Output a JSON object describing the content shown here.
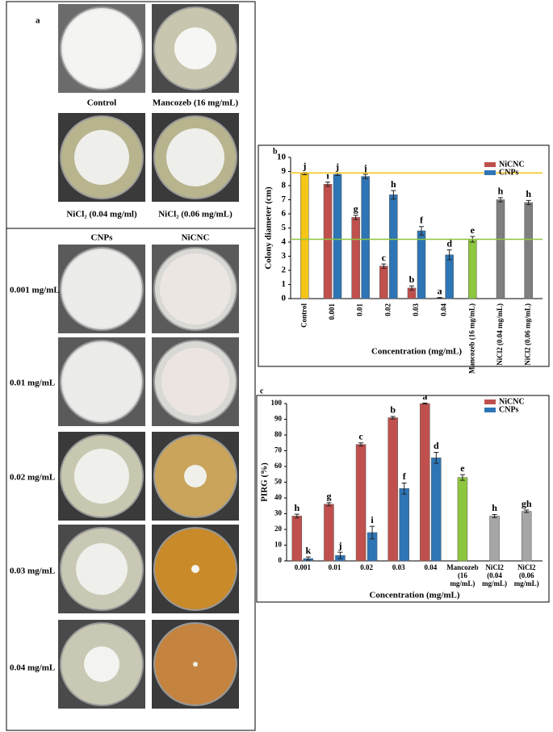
{
  "panel_a": {
    "label": "a",
    "top_captions": [
      "Control",
      "Mancozeb (16 mg/mL)",
      "NiCl₂ (0.04 mg/ml)",
      "NiCl₂ (0.06 mg/mL)"
    ],
    "column_headers": [
      "CNPs",
      "NiCNC"
    ],
    "row_labels": [
      "0.001 mg/mL",
      "0.01 mg/mL",
      "0.02 mg/mL",
      "0.03 mg/mL",
      "0.04 mg/mL"
    ]
  },
  "chart_data": [
    {
      "type": "bar",
      "panel_label": "b",
      "x_label": "Concentration (mg/mL)",
      "y_label": "Colony diameter (cm)",
      "categories": [
        "Control",
        "0.001",
        "0.01",
        "0.02",
        "0.03",
        "0.04",
        "Mancozeb (16 mg/mL)",
        "NiCl2 (0.04 mg/mL)",
        "NiCl2 (0.06 mg/mL)"
      ],
      "series": [
        {
          "name": "NiCNC",
          "color": "#c0504d",
          "values": [
            null,
            8.1,
            5.75,
            2.3,
            0.75,
            0.05,
            null,
            null,
            null
          ],
          "errors": [
            null,
            0.15,
            0.15,
            0.15,
            0.15,
            0.03,
            null,
            null,
            null
          ],
          "letters": [
            null,
            "i",
            "g",
            "c",
            "b",
            "a",
            null,
            null,
            null
          ]
        },
        {
          "name": "CNPs",
          "color": "#2e75b6",
          "values": [
            null,
            8.8,
            8.65,
            7.35,
            4.8,
            3.1,
            null,
            null,
            null
          ],
          "errors": [
            null,
            0.08,
            0.15,
            0.3,
            0.3,
            0.35,
            null,
            null,
            null
          ],
          "letters": [
            null,
            "j",
            "j",
            "h",
            "f",
            "d",
            null,
            null,
            null
          ]
        }
      ],
      "other_values": [
        8.85,
        null,
        null,
        null,
        null,
        null,
        4.2,
        7.0,
        6.8
      ],
      "other_errors": [
        0.08,
        null,
        null,
        null,
        null,
        null,
        0.2,
        0.15,
        0.15
      ],
      "other_letters": [
        "j",
        null,
        null,
        null,
        null,
        null,
        "e",
        "h",
        "h"
      ],
      "other_colors": [
        "#f5c518",
        null,
        null,
        null,
        null,
        null,
        "#8dc63f",
        "#7f7f7f",
        "#7f7f7f"
      ],
      "reference_lines": [
        {
          "value": 8.9,
          "color": "#f5c518"
        },
        {
          "value": 4.2,
          "color": "#8dc63f"
        }
      ],
      "ylim": [
        0,
        10
      ],
      "yticks": [
        0,
        1,
        2,
        3,
        4,
        5,
        6,
        7,
        8,
        9,
        10
      ],
      "legend": "top-right"
    },
    {
      "type": "bar",
      "panel_label": "c",
      "x_label": "Concentration (mg/mL)",
      "y_label": "PIRG (%)",
      "categories": [
        "0.001",
        "0.01",
        "0.02",
        "0.03",
        "0.04",
        "Mancozeb (16 mg/mL)",
        "NiCl2 (0.04 mg/mL)",
        "NiCl2 (0.06 mg/mL)"
      ],
      "series": [
        {
          "name": "NiCNC",
          "color": "#c0504d",
          "values": [
            28.5,
            36,
            74,
            91,
            100,
            null,
            null,
            null
          ],
          "errors": [
            1.2,
            1,
            1,
            0.8,
            0.3,
            null,
            null,
            null
          ],
          "letters": [
            "h",
            "g",
            "c",
            "b",
            "a",
            null,
            null,
            null
          ]
        },
        {
          "name": "CNPs",
          "color": "#2e75b6",
          "values": [
            1.5,
            3.5,
            18,
            46,
            65.5,
            null,
            null,
            null
          ],
          "errors": [
            1,
            2,
            4,
            3.5,
            3.5,
            null,
            null,
            null
          ],
          "letters": [
            "k",
            "j",
            "i",
            "f",
            "d",
            null,
            null,
            null
          ]
        }
      ],
      "other_values": [
        null,
        null,
        null,
        null,
        null,
        53,
        28.5,
        31.5
      ],
      "other_errors": [
        null,
        null,
        null,
        null,
        null,
        1.8,
        1,
        0.8
      ],
      "other_letters": [
        null,
        null,
        null,
        null,
        null,
        "e",
        "h",
        "gh"
      ],
      "other_colors": [
        null,
        null,
        null,
        null,
        null,
        "#8dc63f",
        "#a6a6a6",
        "#a6a6a6"
      ],
      "ylim": [
        0,
        100
      ],
      "yticks": [
        0,
        10,
        20,
        30,
        40,
        50,
        60,
        70,
        80,
        90,
        100
      ],
      "legend": "top-right"
    }
  ]
}
